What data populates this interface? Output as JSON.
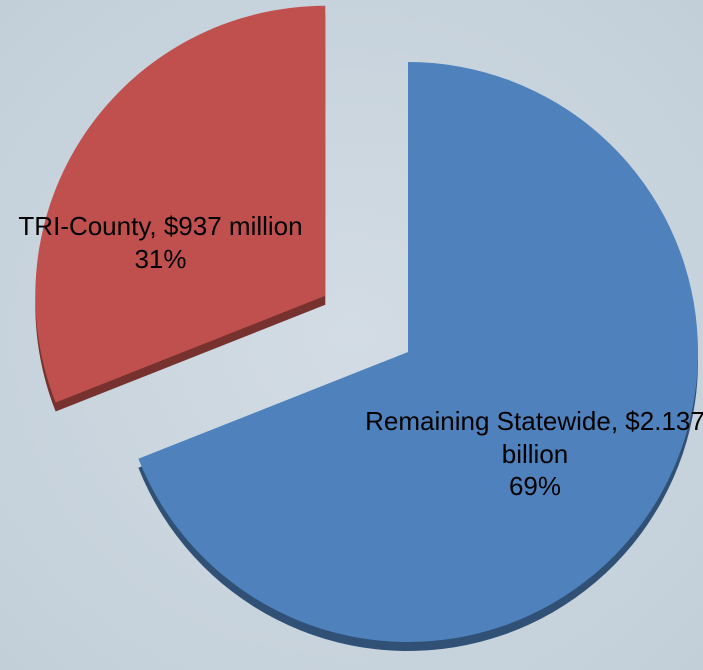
{
  "chart_data": {
    "type": "pie",
    "categories": [
      "Remaining Statewide, $2.137   billion",
      "TRI-County, $937 million"
    ],
    "values": [
      69,
      31
    ],
    "value_labels": [
      "69%",
      "31%"
    ],
    "colors": [
      "#4f81bd",
      "#c0504d"
    ]
  }
}
